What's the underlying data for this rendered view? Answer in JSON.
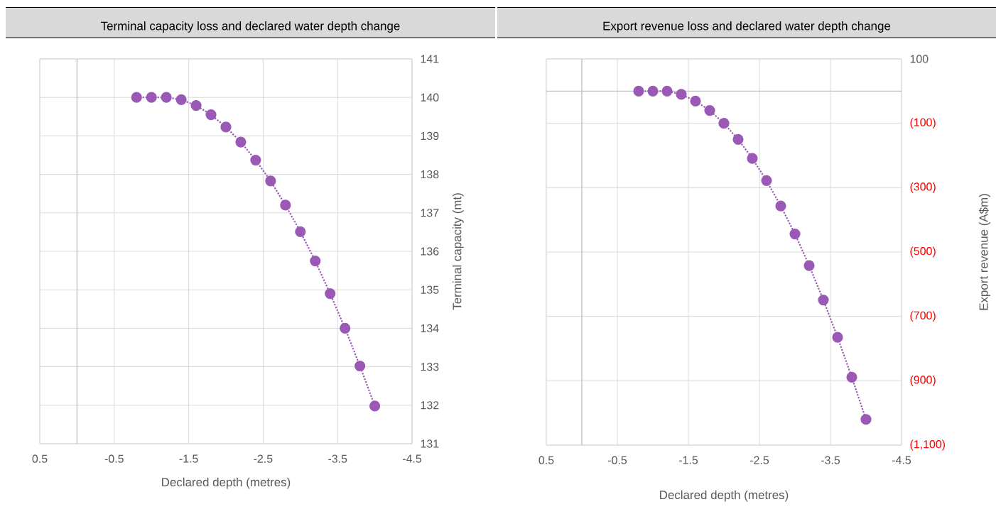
{
  "chart_data": [
    {
      "type": "line",
      "title": "Terminal capacity loss and declared water depth change",
      "xlabel": "Declared depth (metres)",
      "ylabel": "Terminal capacity (mt)",
      "x": [
        -0.8,
        -1.0,
        -1.2,
        -1.4,
        -1.6,
        -1.8,
        -2.0,
        -2.2,
        -2.4,
        -2.6,
        -2.8,
        -3.0,
        -3.2,
        -3.4,
        -3.6,
        -3.8,
        -4.0
      ],
      "values": [
        140.0,
        140.0,
        140.0,
        139.94,
        139.79,
        139.55,
        139.23,
        138.84,
        138.37,
        137.83,
        137.2,
        136.51,
        135.75,
        134.9,
        134.0,
        133.02,
        131.98
      ],
      "color": "#9b59b6",
      "marker": "circle",
      "line_style": "dotted",
      "xlim": [
        0.5,
        -4.5
      ],
      "xticks": [
        0.5,
        -0.5,
        -1.5,
        -2.5,
        -3.5,
        -4.5
      ],
      "ylim": [
        131,
        141
      ],
      "yticks": [
        131,
        132,
        133,
        134,
        135,
        136,
        137,
        138,
        139,
        140,
        141
      ],
      "ref_lines": [
        {
          "axis": "x",
          "value": 0,
          "color": "#bfbfbf"
        }
      ],
      "grid": true
    },
    {
      "type": "line",
      "title": "Export revenue loss and declared water depth change",
      "xlabel": "Declared depth (metres)",
      "ylabel": "Export revenue (A$m)",
      "x": [
        -0.8,
        -1.0,
        -1.2,
        -1.4,
        -1.6,
        -1.8,
        -2.0,
        -2.2,
        -2.4,
        -2.6,
        -2.8,
        -3.0,
        -3.2,
        -3.4,
        -3.6,
        -3.8,
        -4.0
      ],
      "values": [
        0,
        0,
        0,
        -10,
        -31,
        -60,
        -100,
        -150,
        -209,
        -278,
        -357,
        -444,
        -542,
        -649,
        -765,
        -889,
        -1020
      ],
      "color": "#9b59b6",
      "marker": "circle",
      "line_style": "dotted",
      "xlim": [
        0.5,
        -4.5
      ],
      "xticks": [
        0.5,
        -0.5,
        -1.5,
        -2.5,
        -3.5,
        -4.5
      ],
      "ylim": [
        -1100,
        100
      ],
      "yticks": [
        100,
        {
          "value": -100,
          "label": "(100)"
        },
        {
          "value": -300,
          "label": "(300)"
        },
        {
          "value": -500,
          "label": "(500)"
        },
        {
          "value": -700,
          "label": "(700)"
        },
        {
          "value": -900,
          "label": "(900)"
        },
        {
          "value": -1100,
          "label": "(1,100)"
        }
      ],
      "ref_lines": [
        {
          "axis": "x",
          "value": 0,
          "color": "#bfbfbf"
        },
        {
          "axis": "y",
          "value": 0,
          "color": "#bfbfbf"
        }
      ],
      "grid": true
    }
  ]
}
